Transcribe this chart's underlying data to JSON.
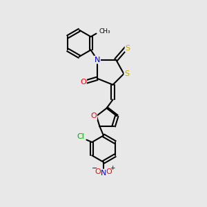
{
  "bg_color": "#e8e8e8",
  "bond_color": "#000000",
  "bond_width": 1.5,
  "atoms": {
    "N_color": "#0000CC",
    "O_color": "#FF0000",
    "S_color": "#CCAA00",
    "Cl_color": "#00AA00",
    "C_color": "#000000"
  },
  "figsize": [
    3.0,
    3.0
  ],
  "dpi": 100,
  "xlim": [
    0,
    10
  ],
  "ylim": [
    0,
    13
  ]
}
